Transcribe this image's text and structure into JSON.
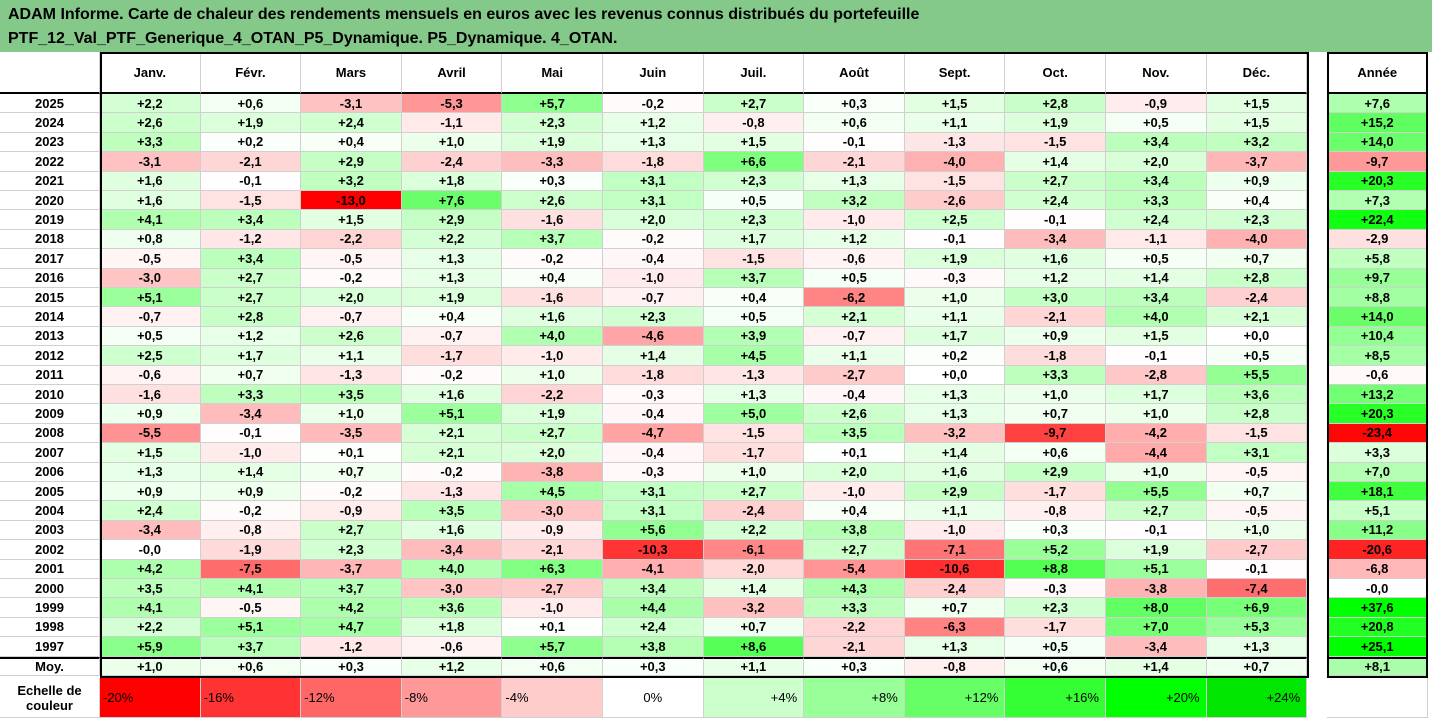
{
  "title": {
    "line1": "ADAM Informe. Carte de chaleur des rendements mensuels en euros avec les revenus connus distribués du portefeuille",
    "line2": "PTF_12_Val_PTF_Generique_4_OTAN_P5_Dynamique. P5_Dynamique. 4_OTAN."
  },
  "watermark": "",
  "chart_data": {
    "type": "heatmap",
    "columns": [
      "Janv.",
      "Févr.",
      "Mars",
      "Avril",
      "Mai",
      "Juin",
      "Juil.",
      "Août",
      "Sept.",
      "Oct.",
      "Nov.",
      "Déc."
    ],
    "annual_header": "Année",
    "rows": [
      {
        "year": "2025",
        "values": [
          "+2,2",
          "+0,6",
          "-3,1",
          "-5,3",
          "+5,7",
          "-0,2",
          "+2,7",
          "+0,3",
          "+1,5",
          "+2,8",
          "-0,9",
          "+1,5"
        ],
        "annual": "+7,6"
      },
      {
        "year": "2024",
        "values": [
          "+2,6",
          "+1,9",
          "+2,4",
          "-1,1",
          "+2,3",
          "+1,2",
          "-0,8",
          "+0,6",
          "+1,1",
          "+1,9",
          "+0,5",
          "+1,5"
        ],
        "annual": "+15,2"
      },
      {
        "year": "2023",
        "values": [
          "+3,3",
          "+0,2",
          "+0,4",
          "+1,0",
          "+1,9",
          "+1,3",
          "+1,5",
          "-0,1",
          "-1,3",
          "-1,5",
          "+3,4",
          "+3,2"
        ],
        "annual": "+14,0"
      },
      {
        "year": "2022",
        "values": [
          "-3,1",
          "-2,1",
          "+2,9",
          "-2,4",
          "-3,3",
          "-1,8",
          "+6,6",
          "-2,1",
          "-4,0",
          "+1,4",
          "+2,0",
          "-3,7"
        ],
        "annual": "-9,7"
      },
      {
        "year": "2021",
        "values": [
          "+1,6",
          "-0,1",
          "+3,2",
          "+1,8",
          "+0,3",
          "+3,1",
          "+2,3",
          "+1,3",
          "-1,5",
          "+2,7",
          "+3,4",
          "+0,9"
        ],
        "annual": "+20,3"
      },
      {
        "year": "2020",
        "values": [
          "+1,6",
          "-1,5",
          "-13,0",
          "+7,6",
          "+2,6",
          "+3,1",
          "+0,5",
          "+3,2",
          "-2,6",
          "+2,4",
          "+3,3",
          "+0,4"
        ],
        "annual": "+7,3"
      },
      {
        "year": "2019",
        "values": [
          "+4,1",
          "+3,4",
          "+1,5",
          "+2,9",
          "-1,6",
          "+2,0",
          "+2,3",
          "-1,0",
          "+2,5",
          "-0,1",
          "+2,4",
          "+2,3"
        ],
        "annual": "+22,4"
      },
      {
        "year": "2018",
        "values": [
          "+0,8",
          "-1,2",
          "-2,2",
          "+2,2",
          "+3,7",
          "-0,2",
          "+1,7",
          "+1,2",
          "-0,1",
          "-3,4",
          "-1,1",
          "-4,0"
        ],
        "annual": "-2,9"
      },
      {
        "year": "2017",
        "values": [
          "-0,5",
          "+3,4",
          "-0,5",
          "+1,3",
          "-0,2",
          "-0,4",
          "-1,5",
          "-0,6",
          "+1,9",
          "+1,6",
          "+0,5",
          "+0,7"
        ],
        "annual": "+5,8"
      },
      {
        "year": "2016",
        "values": [
          "-3,0",
          "+2,7",
          "-0,2",
          "+1,3",
          "+0,4",
          "-1,0",
          "+3,7",
          "+0,5",
          "-0,3",
          "+1,2",
          "+1,4",
          "+2,8"
        ],
        "annual": "+9,7"
      },
      {
        "year": "2015",
        "values": [
          "+5,1",
          "+2,7",
          "+2,0",
          "+1,9",
          "-1,6",
          "-0,7",
          "+0,4",
          "-6,2",
          "+1,0",
          "+3,0",
          "+3,4",
          "-2,4"
        ],
        "annual": "+8,8"
      },
      {
        "year": "2014",
        "values": [
          "-0,7",
          "+2,8",
          "-0,7",
          "+0,4",
          "+1,6",
          "+2,3",
          "+0,5",
          "+2,1",
          "+1,1",
          "-2,1",
          "+4,0",
          "+2,1"
        ],
        "annual": "+14,0"
      },
      {
        "year": "2013",
        "values": [
          "+0,5",
          "+1,2",
          "+2,6",
          "-0,7",
          "+4,0",
          "-4,6",
          "+3,9",
          "-0,7",
          "+1,7",
          "+0,9",
          "+1,5",
          "+0,0"
        ],
        "annual": "+10,4"
      },
      {
        "year": "2012",
        "values": [
          "+2,5",
          "+1,7",
          "+1,1",
          "-1,7",
          "-1,0",
          "+1,4",
          "+4,5",
          "+1,1",
          "+0,2",
          "-1,8",
          "-0,1",
          "+0,5"
        ],
        "annual": "+8,5"
      },
      {
        "year": "2011",
        "values": [
          "-0,6",
          "+0,7",
          "-1,3",
          "-0,2",
          "+1,0",
          "-1,8",
          "-1,3",
          "-2,7",
          "+0,0",
          "+3,3",
          "-2,8",
          "+5,5"
        ],
        "annual": "-0,6"
      },
      {
        "year": "2010",
        "values": [
          "-1,6",
          "+3,3",
          "+3,5",
          "+1,6",
          "-2,2",
          "-0,3",
          "+1,3",
          "-0,4",
          "+1,3",
          "+1,0",
          "+1,7",
          "+3,6"
        ],
        "annual": "+13,2"
      },
      {
        "year": "2009",
        "values": [
          "+0,9",
          "-3,4",
          "+1,0",
          "+5,1",
          "+1,9",
          "-0,4",
          "+5,0",
          "+2,6",
          "+1,3",
          "+0,7",
          "+1,0",
          "+2,8"
        ],
        "annual": "+20,3"
      },
      {
        "year": "2008",
        "values": [
          "-5,5",
          "-0,1",
          "-3,5",
          "+2,1",
          "+2,7",
          "-4,7",
          "-1,5",
          "+3,5",
          "-3,2",
          "-9,7",
          "-4,2",
          "-1,5"
        ],
        "annual": "-23,4"
      },
      {
        "year": "2007",
        "values": [
          "+1,5",
          "-1,0",
          "+0,1",
          "+2,1",
          "+2,0",
          "-0,4",
          "-1,7",
          "+0,1",
          "+1,4",
          "+0,6",
          "-4,4",
          "+3,1"
        ],
        "annual": "+3,3"
      },
      {
        "year": "2006",
        "values": [
          "+1,3",
          "+1,4",
          "+0,7",
          "-0,2",
          "-3,8",
          "-0,3",
          "+1,0",
          "+2,0",
          "+1,6",
          "+2,9",
          "+1,0",
          "-0,5"
        ],
        "annual": "+7,0"
      },
      {
        "year": "2005",
        "values": [
          "+0,9",
          "+0,9",
          "-0,2",
          "-1,3",
          "+4,5",
          "+3,1",
          "+2,7",
          "-1,0",
          "+2,9",
          "-1,7",
          "+5,5",
          "+0,7"
        ],
        "annual": "+18,1"
      },
      {
        "year": "2004",
        "values": [
          "+2,4",
          "-0,2",
          "-0,9",
          "+3,5",
          "-3,0",
          "+3,1",
          "-2,4",
          "+0,4",
          "+1,1",
          "-0,8",
          "+2,7",
          "-0,5"
        ],
        "annual": "+5,1"
      },
      {
        "year": "2003",
        "values": [
          "-3,4",
          "-0,8",
          "+2,7",
          "+1,6",
          "-0,9",
          "+5,6",
          "+2,2",
          "+3,8",
          "-1,0",
          "+0,3",
          "-0,1",
          "+1,0"
        ],
        "annual": "+11,2"
      },
      {
        "year": "2002",
        "values": [
          "-0,0",
          "-1,9",
          "+2,3",
          "-3,4",
          "-2,1",
          "-10,3",
          "-6,1",
          "+2,7",
          "-7,1",
          "+5,2",
          "+1,9",
          "-2,7"
        ],
        "annual": "-20,6"
      },
      {
        "year": "2001",
        "values": [
          "+4,2",
          "-7,5",
          "-3,7",
          "+4,0",
          "+6,3",
          "-4,1",
          "-2,0",
          "-5,4",
          "-10,6",
          "+8,8",
          "+5,1",
          "-0,1"
        ],
        "annual": "-6,8"
      },
      {
        "year": "2000",
        "values": [
          "+3,5",
          "+4,1",
          "+3,7",
          "-3,0",
          "-2,7",
          "+3,4",
          "+1,4",
          "+4,3",
          "-2,4",
          "-0,3",
          "-3,8",
          "-7,4"
        ],
        "annual": "-0,0"
      },
      {
        "year": "1999",
        "values": [
          "+4,1",
          "-0,5",
          "+4,2",
          "+3,6",
          "-1,0",
          "+4,4",
          "-3,2",
          "+3,3",
          "+0,7",
          "+2,3",
          "+8,0",
          "+6,9"
        ],
        "annual": "+37,6"
      },
      {
        "year": "1998",
        "values": [
          "+2,2",
          "+5,1",
          "+4,7",
          "+1,8",
          "+0,1",
          "+2,4",
          "+0,7",
          "-2,2",
          "-6,3",
          "-1,7",
          "+7,0",
          "+5,3"
        ],
        "annual": "+20,8"
      },
      {
        "year": "1997",
        "values": [
          "+5,9",
          "+3,7",
          "-1,2",
          "-0,6",
          "+5,7",
          "+3,8",
          "+8,6",
          "-2,1",
          "+1,3",
          "+0,5",
          "-3,4",
          "+1,3"
        ],
        "annual": "+25,1"
      }
    ],
    "average": {
      "label": "Moy.",
      "values": [
        "+1,0",
        "+0,6",
        "+0,3",
        "+1,2",
        "+0,6",
        "+0,3",
        "+1,1",
        "+0,3",
        "-0,8",
        "+0,6",
        "+1,4",
        "+0,7"
      ],
      "annual": "+8,1"
    },
    "color_scale": {
      "label_line1": "Echelle de",
      "label_line2": "couleur",
      "steps": [
        {
          "label": "-20%",
          "color": "#ff0000"
        },
        {
          "label": "-16%",
          "color": "#ff3333"
        },
        {
          "label": "-12%",
          "color": "#ff6666"
        },
        {
          "label": "-8%",
          "color": "#ff9999"
        },
        {
          "label": "-4%",
          "color": "#ffcccc"
        },
        {
          "label": "0%",
          "color": "#ffffff"
        },
        {
          "label": "+4%",
          "color": "#ccffcc"
        },
        {
          "label": "+8%",
          "color": "#99ff99"
        },
        {
          "label": "+12%",
          "color": "#66ff66"
        },
        {
          "label": "+16%",
          "color": "#33ff33"
        },
        {
          "label": "+20%",
          "color": "#00ff00"
        },
        {
          "label": "+24%",
          "color": "#00e600"
        }
      ]
    },
    "colors": {
      "negative": "#ff0000",
      "neutral": "#ffffff",
      "positive": "#00ff00",
      "title_bg": "#84c98a"
    }
  }
}
